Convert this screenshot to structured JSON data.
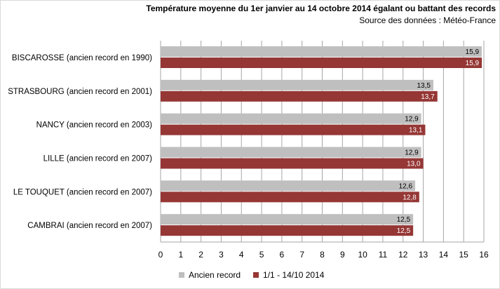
{
  "title": "Température moyenne du 1er janvier au 14 octobre 2014 égalant ou battant des records",
  "subtitle": "Source des données : Météo-France",
  "colors": {
    "ancien": "#bfbfbf",
    "current": "#953735",
    "grid": "#a6a6a6"
  },
  "chart_data": {
    "type": "bar",
    "orientation": "horizontal",
    "categories": [
      "BISCAROSSE (ancien record en 1990)",
      "STRASBOURG (ancien record en 2001)",
      "NANCY (ancien record en 2003)",
      "LILLE (ancien record en 2007)",
      "LE TOUQUET (ancien record en 2007)",
      "CAMBRAI (ancien record en 2007)"
    ],
    "series": [
      {
        "name": "Ancien record",
        "values": [
          15.9,
          13.5,
          12.9,
          12.9,
          12.6,
          12.5
        ],
        "labels": [
          "15,9",
          "13,5",
          "12,9",
          "12,9",
          "12,6",
          "12,5"
        ]
      },
      {
        "name": "1/1 - 14/10 2014",
        "values": [
          15.9,
          13.7,
          13.1,
          13.0,
          12.8,
          12.5
        ],
        "labels": [
          "15,9",
          "13,7",
          "13,1",
          "13,0",
          "12,8",
          "12,5"
        ]
      }
    ],
    "xlim": [
      0,
      16
    ],
    "xticks": [
      "0",
      "1",
      "2",
      "3",
      "4",
      "5",
      "6",
      "7",
      "8",
      "9",
      "10",
      "11",
      "12",
      "13",
      "14",
      "15",
      "16"
    ],
    "grid": true,
    "legend": "bottom"
  }
}
